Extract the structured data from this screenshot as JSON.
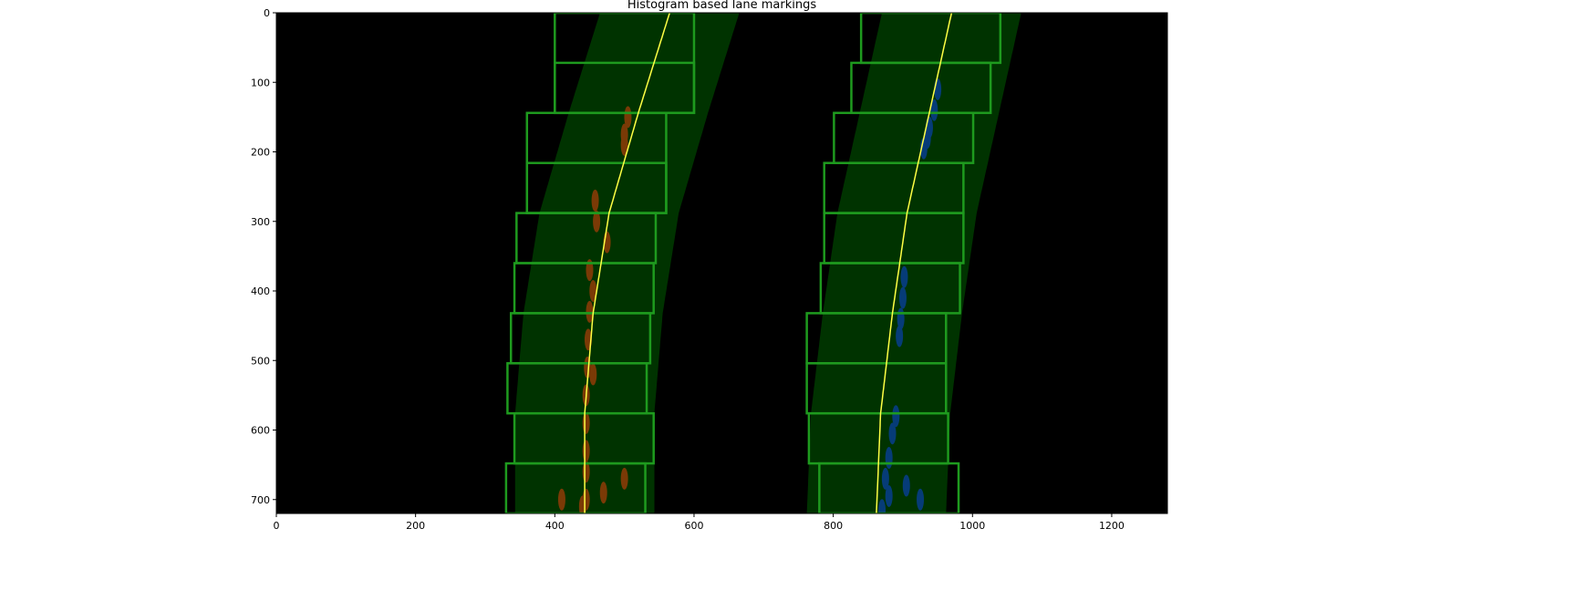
{
  "chart_data": {
    "type": "image",
    "title": "Histogram based lane markings",
    "xlabel": "",
    "ylabel": "",
    "xlim": [
      0,
      1280
    ],
    "ylim": [
      720,
      0
    ],
    "x_ticks": [
      0,
      200,
      400,
      600,
      800,
      1000,
      1200
    ],
    "y_ticks": [
      0,
      100,
      200,
      300,
      400,
      500,
      600,
      700
    ],
    "grid": false,
    "colors": {
      "background": "#000000",
      "search_band": "#003300",
      "window_edge": "#1e9a1e",
      "fit_line": "#ffff44",
      "left_pixels": "#7a3a06",
      "right_pixels": "#063c78"
    },
    "lane_fits": [
      {
        "name": "left",
        "points": [
          [
            565,
            0
          ],
          [
            520,
            144
          ],
          [
            478,
            288
          ],
          [
            455,
            432
          ],
          [
            443,
            576
          ],
          [
            443,
            720
          ]
        ]
      },
      {
        "name": "right",
        "points": [
          [
            970,
            0
          ],
          [
            938,
            144
          ],
          [
            906,
            288
          ],
          [
            885,
            432
          ],
          [
            868,
            576
          ],
          [
            862,
            720
          ]
        ]
      }
    ],
    "search_margin": 100,
    "sliding_windows": [
      {
        "lane": "left",
        "x0": 400,
        "x1": 600,
        "y0": 0,
        "y1": 144
      },
      {
        "lane": "left",
        "x0": 400,
        "x1": 600,
        "y0": 72,
        "y1": 144
      },
      {
        "lane": "left",
        "x0": 360,
        "x1": 560,
        "y0": 144,
        "y1": 288
      },
      {
        "lane": "left",
        "x0": 360,
        "x1": 560,
        "y0": 216,
        "y1": 288
      },
      {
        "lane": "left",
        "x0": 345,
        "x1": 545,
        "y0": 288,
        "y1": 360
      },
      {
        "lane": "left",
        "x0": 342,
        "x1": 542,
        "y0": 360,
        "y1": 432
      },
      {
        "lane": "left",
        "x0": 337,
        "x1": 537,
        "y0": 432,
        "y1": 504
      },
      {
        "lane": "left",
        "x0": 332,
        "x1": 532,
        "y0": 504,
        "y1": 576
      },
      {
        "lane": "left",
        "x0": 342,
        "x1": 542,
        "y0": 576,
        "y1": 648
      },
      {
        "lane": "left",
        "x0": 330,
        "x1": 530,
        "y0": 648,
        "y1": 720
      },
      {
        "lane": "right",
        "x0": 840,
        "x1": 1040,
        "y0": 0,
        "y1": 72
      },
      {
        "lane": "right",
        "x0": 826,
        "x1": 1026,
        "y0": 72,
        "y1": 144
      },
      {
        "lane": "right",
        "x0": 801,
        "x1": 1001,
        "y0": 144,
        "y1": 216
      },
      {
        "lane": "right",
        "x0": 787,
        "x1": 987,
        "y0": 216,
        "y1": 288
      },
      {
        "lane": "right",
        "x0": 787,
        "x1": 987,
        "y0": 288,
        "y1": 360
      },
      {
        "lane": "right",
        "x0": 782,
        "x1": 982,
        "y0": 360,
        "y1": 432
      },
      {
        "lane": "right",
        "x0": 762,
        "x1": 962,
        "y0": 432,
        "y1": 504
      },
      {
        "lane": "right",
        "x0": 762,
        "x1": 962,
        "y0": 504,
        "y1": 576
      },
      {
        "lane": "right",
        "x0": 765,
        "x1": 965,
        "y0": 576,
        "y1": 648
      },
      {
        "lane": "right",
        "x0": 780,
        "x1": 980,
        "y0": 648,
        "y1": 720
      }
    ],
    "detected_pixels": [
      {
        "lane": "left",
        "points": [
          [
            505,
            150
          ],
          [
            500,
            175
          ],
          [
            500,
            190
          ],
          [
            458,
            270
          ],
          [
            460,
            300
          ],
          [
            475,
            330
          ],
          [
            450,
            370
          ],
          [
            455,
            400
          ],
          [
            450,
            430
          ],
          [
            448,
            470
          ],
          [
            447,
            510
          ],
          [
            445,
            550
          ],
          [
            445,
            590
          ],
          [
            445,
            630
          ],
          [
            445,
            660
          ],
          [
            445,
            700
          ],
          [
            440,
            710
          ],
          [
            470,
            690
          ],
          [
            410,
            700
          ],
          [
            500,
            670
          ],
          [
            455,
            520
          ]
        ]
      },
      {
        "lane": "right",
        "points": [
          [
            950,
            110
          ],
          [
            945,
            140
          ],
          [
            938,
            165
          ],
          [
            935,
            180
          ],
          [
            930,
            195
          ],
          [
            902,
            380
          ],
          [
            900,
            410
          ],
          [
            897,
            440
          ],
          [
            895,
            465
          ],
          [
            890,
            580
          ],
          [
            880,
            640
          ],
          [
            875,
            670
          ],
          [
            880,
            695
          ],
          [
            870,
            715
          ],
          [
            905,
            680
          ],
          [
            925,
            700
          ],
          [
            885,
            605
          ]
        ]
      }
    ]
  }
}
